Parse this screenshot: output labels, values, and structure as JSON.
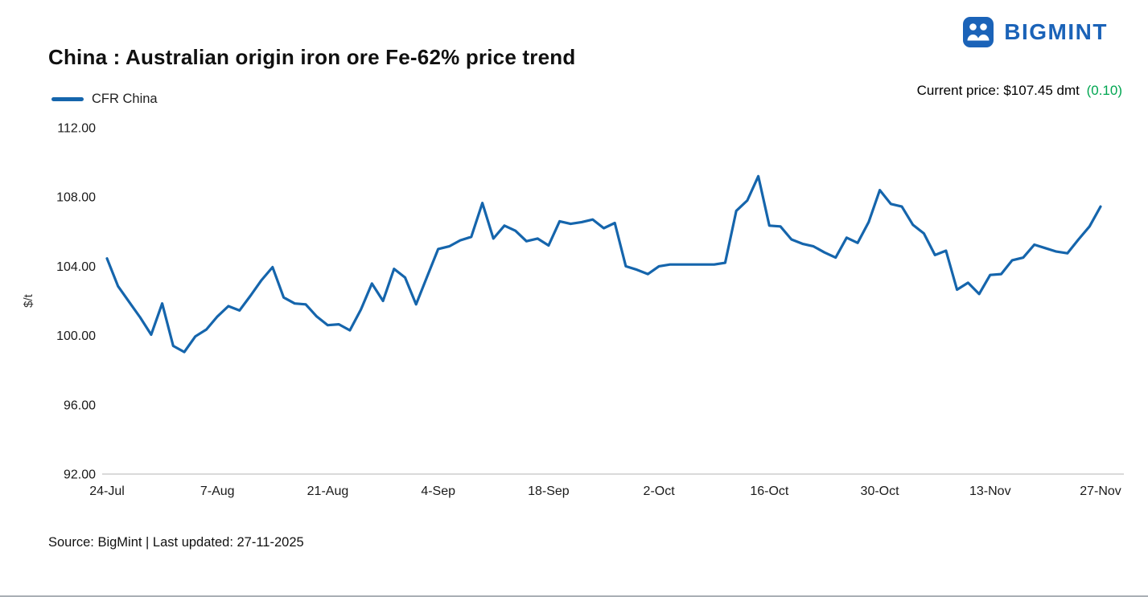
{
  "header": {
    "title": "China : Australian origin iron ore Fe-62% price trend",
    "brand": "BIGMINT",
    "current_price_label": "Current price: $107.45 dmt",
    "current_price_change": "(0.10)"
  },
  "legend": {
    "series_label": "CFR China"
  },
  "footer": {
    "source": "Source: BigMint | Last updated: 27-11-2025"
  },
  "colors": {
    "series_blue": "#1565AC",
    "brand_blue": "#1B63B8",
    "change_green": "#00A651",
    "axis_grey": "#C4C4C4",
    "tick_text": "#1a1a1a"
  },
  "chart_data": {
    "type": "line",
    "title": "China : Australian origin iron ore Fe-62% price trend",
    "ylabel": "$/t",
    "ylim": [
      92,
      112
    ],
    "yticks": [
      92,
      96,
      100,
      104,
      108,
      112
    ],
    "grid": false,
    "legend_position": "top-left",
    "xtick_labels": [
      "24-Jul",
      "7-Aug",
      "21-Aug",
      "4-Sep",
      "18-Sep",
      "2-Oct",
      "16-Oct",
      "30-Oct",
      "13-Nov",
      "27-Nov"
    ],
    "xtick_indices": [
      0,
      10,
      20,
      30,
      40,
      50,
      60,
      70,
      80,
      90
    ],
    "current_price": 107.45,
    "change": 0.1,
    "series": [
      {
        "name": "CFR China",
        "color": "#1565AC",
        "values": [
          104.45,
          102.85,
          101.95,
          101.05,
          100.05,
          101.85,
          99.4,
          99.05,
          99.95,
          100.35,
          101.1,
          101.7,
          101.45,
          102.3,
          103.2,
          103.95,
          102.2,
          101.85,
          101.8,
          101.1,
          100.6,
          100.65,
          100.3,
          101.5,
          103.0,
          102.0,
          103.85,
          103.35,
          101.8,
          103.4,
          105.0,
          105.15,
          105.5,
          105.7,
          107.65,
          105.6,
          106.35,
          106.05,
          105.45,
          105.6,
          105.2,
          106.6,
          106.45,
          106.55,
          106.7,
          106.2,
          106.5,
          104.0,
          103.8,
          103.55,
          104.0,
          104.1,
          104.1,
          104.1,
          104.1,
          104.1,
          104.2,
          107.2,
          107.8,
          109.2,
          106.35,
          106.3,
          105.55,
          105.3,
          105.15,
          104.8,
          104.5,
          105.65,
          105.35,
          106.55,
          108.4,
          107.6,
          107.45,
          106.4,
          105.9,
          104.65,
          104.9,
          102.65,
          103.05,
          102.4,
          103.5,
          103.55,
          104.35,
          104.5,
          105.25,
          105.05,
          104.85,
          104.75,
          105.55,
          106.3,
          107.45
        ]
      }
    ]
  }
}
